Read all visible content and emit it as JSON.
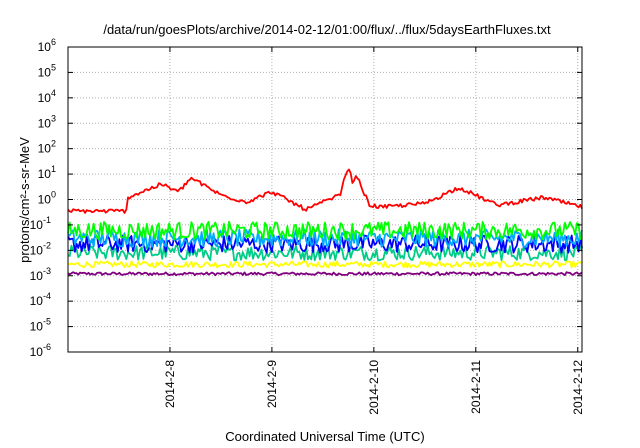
{
  "chart_data": {
    "type": "line",
    "title": "/data/run/goesPlots/archive/2014-02-12/01:00/flux/../flux/5daysEarthFluxes.txt",
    "xlabel": "Coordinated Universal Time (UTC)",
    "ylabel": "protons/cm²-s-sr-MeV",
    "y_scale": "log",
    "ylim": [
      1e-06,
      1000000.0
    ],
    "xlim": [
      "2014-02-07",
      "2014-02-12T01:00"
    ],
    "y_ticks": [
      {
        "base": "10",
        "exp": "-6",
        "value": 1e-06
      },
      {
        "base": "10",
        "exp": "-5",
        "value": 1e-05
      },
      {
        "base": "10",
        "exp": "-4",
        "value": 0.0001
      },
      {
        "base": "10",
        "exp": "-3",
        "value": 0.001
      },
      {
        "base": "10",
        "exp": "-2",
        "value": 0.01
      },
      {
        "base": "10",
        "exp": "-1",
        "value": 0.1
      },
      {
        "base": "10",
        "exp": "0",
        "value": 1
      },
      {
        "base": "10",
        "exp": "1",
        "value": 10
      },
      {
        "base": "10",
        "exp": "2",
        "value": 100
      },
      {
        "base": "10",
        "exp": "3",
        "value": 1000
      },
      {
        "base": "10",
        "exp": "4",
        "value": 10000
      },
      {
        "base": "10",
        "exp": "5",
        "value": 100000
      },
      {
        "base": "10",
        "exp": "6",
        "value": 1000000
      }
    ],
    "x_ticks": [
      {
        "label": "2014-2-8",
        "date": "2014-02-08"
      },
      {
        "label": "2014-2-9",
        "date": "2014-02-09"
      },
      {
        "label": "2014-2-10",
        "date": "2014-02-10"
      },
      {
        "label": "2014-2-11",
        "date": "2014-02-11"
      },
      {
        "label": "2014-2-12",
        "date": "2014-02-12"
      }
    ],
    "grid": true,
    "series": [
      {
        "color": "#ff0000",
        "base": 0.35,
        "noise": 0.08,
        "spikes": [
          {
            "date": "2014-02-07T14:00",
            "value": 1.2
          },
          {
            "date": "2014-02-07T22:00",
            "value": 4.0
          },
          {
            "date": "2014-02-08T02:00",
            "value": 2.0
          },
          {
            "date": "2014-02-08T05:00",
            "value": 7.0
          },
          {
            "date": "2014-02-08T12:00",
            "value": 1.5
          },
          {
            "date": "2014-02-08T18:00",
            "value": 0.8
          },
          {
            "date": "2014-02-09T00:00",
            "value": 2.0
          },
          {
            "date": "2014-02-09T08:00",
            "value": 0.4
          },
          {
            "date": "2014-02-09T16:00",
            "value": 1.5
          },
          {
            "date": "2014-02-09T19:00",
            "value": 5.0
          },
          {
            "date": "2014-02-09T23:00",
            "value": 0.6
          },
          {
            "date": "2014-02-09T18:00",
            "value": 20.0
          },
          {
            "date": "2014-02-09T20:00",
            "value": 8.0
          },
          {
            "date": "2014-02-10T02:00",
            "value": 0.5
          },
          {
            "date": "2014-02-10T12:00",
            "value": 0.7
          },
          {
            "date": "2014-02-10T20:00",
            "value": 3.0
          },
          {
            "date": "2014-02-11T05:00",
            "value": 0.6
          },
          {
            "date": "2014-02-11T16:00",
            "value": 1.2
          },
          {
            "date": "2014-02-12T01:00",
            "value": 0.5
          }
        ]
      },
      {
        "color": "#00ff00",
        "base": 0.06,
        "noise": 0.35,
        "spikes": []
      },
      {
        "color": "#00aaff",
        "base": 0.03,
        "noise": 0.35,
        "spikes": []
      },
      {
        "color": "#0000ff",
        "base": 0.018,
        "noise": 0.35,
        "spikes": []
      },
      {
        "color": "#00cc88",
        "base": 0.008,
        "noise": 0.3,
        "spikes": []
      },
      {
        "color": "#ffff00",
        "base": 0.0028,
        "noise": 0.12,
        "spikes": []
      },
      {
        "color": "#800080",
        "base": 0.0012,
        "noise": 0.06,
        "spikes": []
      }
    ]
  }
}
